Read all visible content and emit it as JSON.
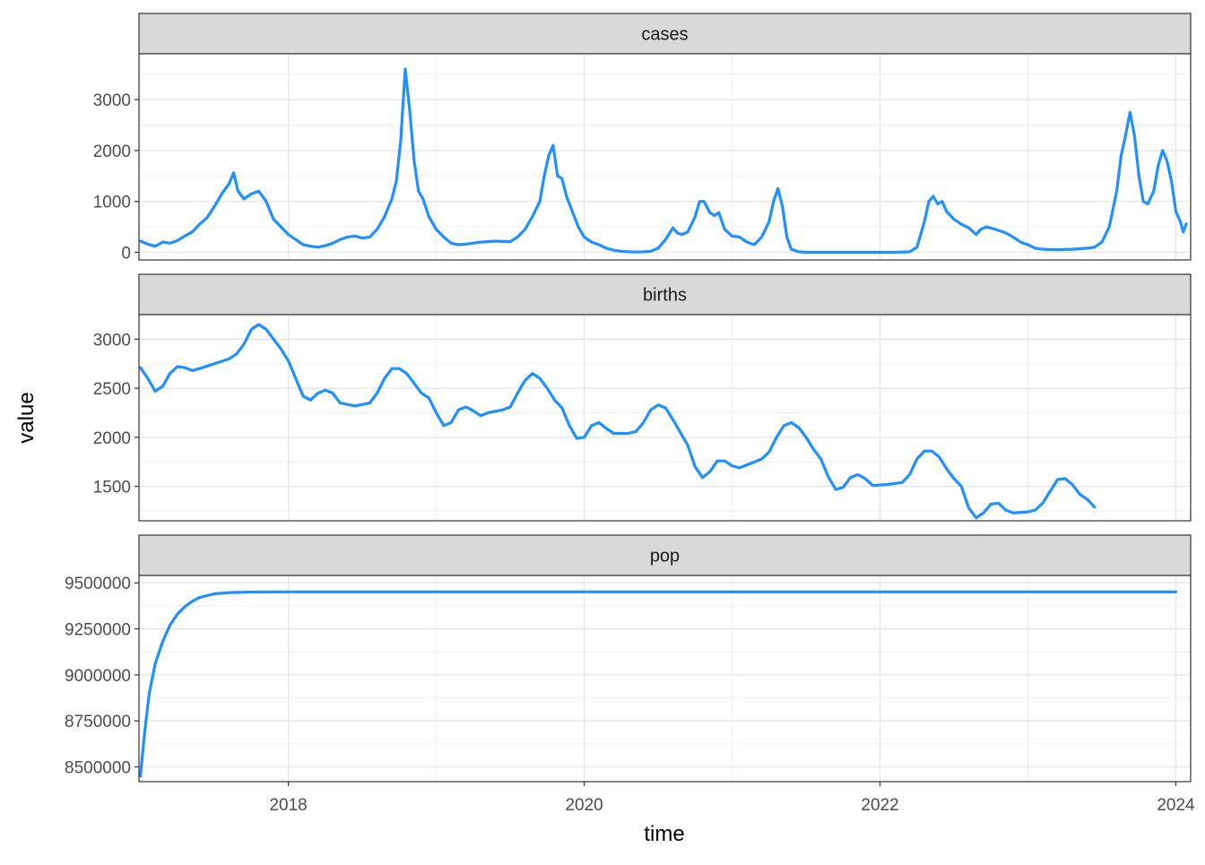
{
  "chart_data": {
    "type": "line",
    "layout": "facet_wrap",
    "xlabel": "time",
    "ylabel": "value",
    "x_ticks": [
      2018,
      2020,
      2022,
      2024
    ],
    "xlim": [
      2016.99,
      2024.1
    ],
    "grid": true,
    "line_color": "#1E90FF",
    "panels": [
      {
        "name": "cases",
        "ylim": [
          -150,
          3900
        ],
        "y_ticks": [
          0,
          1000,
          2000,
          3000
        ],
        "points": [
          [
            2017.0,
            220
          ],
          [
            2017.05,
            160
          ],
          [
            2017.1,
            120
          ],
          [
            2017.15,
            200
          ],
          [
            2017.2,
            180
          ],
          [
            2017.25,
            230
          ],
          [
            2017.3,
            320
          ],
          [
            2017.35,
            400
          ],
          [
            2017.4,
            550
          ],
          [
            2017.45,
            680
          ],
          [
            2017.5,
            900
          ],
          [
            2017.55,
            1150
          ],
          [
            2017.6,
            1350
          ],
          [
            2017.63,
            1560
          ],
          [
            2017.66,
            1200
          ],
          [
            2017.7,
            1050
          ],
          [
            2017.75,
            1150
          ],
          [
            2017.8,
            1200
          ],
          [
            2017.85,
            1000
          ],
          [
            2017.9,
            650
          ],
          [
            2017.95,
            500
          ],
          [
            2018.0,
            350
          ],
          [
            2018.05,
            250
          ],
          [
            2018.1,
            150
          ],
          [
            2018.15,
            120
          ],
          [
            2018.2,
            100
          ],
          [
            2018.25,
            130
          ],
          [
            2018.3,
            180
          ],
          [
            2018.35,
            250
          ],
          [
            2018.4,
            300
          ],
          [
            2018.45,
            320
          ],
          [
            2018.5,
            280
          ],
          [
            2018.55,
            300
          ],
          [
            2018.6,
            450
          ],
          [
            2018.65,
            700
          ],
          [
            2018.7,
            1050
          ],
          [
            2018.73,
            1400
          ],
          [
            2018.76,
            2200
          ],
          [
            2018.79,
            3600
          ],
          [
            2018.82,
            2800
          ],
          [
            2018.85,
            1800
          ],
          [
            2018.88,
            1200
          ],
          [
            2018.91,
            1050
          ],
          [
            2018.95,
            700
          ],
          [
            2019.0,
            450
          ],
          [
            2019.05,
            300
          ],
          [
            2019.1,
            180
          ],
          [
            2019.15,
            150
          ],
          [
            2019.2,
            160
          ],
          [
            2019.3,
            200
          ],
          [
            2019.4,
            220
          ],
          [
            2019.5,
            210
          ],
          [
            2019.55,
            300
          ],
          [
            2019.6,
            450
          ],
          [
            2019.65,
            700
          ],
          [
            2019.7,
            1000
          ],
          [
            2019.73,
            1500
          ],
          [
            2019.76,
            1900
          ],
          [
            2019.79,
            2100
          ],
          [
            2019.82,
            1500
          ],
          [
            2019.85,
            1450
          ],
          [
            2019.88,
            1100
          ],
          [
            2019.92,
            800
          ],
          [
            2019.96,
            500
          ],
          [
            2020.0,
            300
          ],
          [
            2020.05,
            200
          ],
          [
            2020.1,
            150
          ],
          [
            2020.15,
            80
          ],
          [
            2020.2,
            40
          ],
          [
            2020.25,
            20
          ],
          [
            2020.3,
            10
          ],
          [
            2020.35,
            5
          ],
          [
            2020.4,
            10
          ],
          [
            2020.45,
            20
          ],
          [
            2020.5,
            80
          ],
          [
            2020.55,
            250
          ],
          [
            2020.6,
            480
          ],
          [
            2020.63,
            380
          ],
          [
            2020.66,
            350
          ],
          [
            2020.7,
            400
          ],
          [
            2020.75,
            700
          ],
          [
            2020.78,
            1000
          ],
          [
            2020.81,
            1000
          ],
          [
            2020.85,
            780
          ],
          [
            2020.88,
            720
          ],
          [
            2020.91,
            780
          ],
          [
            2020.95,
            450
          ],
          [
            2021.0,
            320
          ],
          [
            2021.05,
            300
          ],
          [
            2021.1,
            200
          ],
          [
            2021.15,
            150
          ],
          [
            2021.2,
            300
          ],
          [
            2021.25,
            600
          ],
          [
            2021.28,
            1000
          ],
          [
            2021.31,
            1250
          ],
          [
            2021.34,
            900
          ],
          [
            2021.37,
            300
          ],
          [
            2021.4,
            60
          ],
          [
            2021.45,
            10
          ],
          [
            2021.5,
            0
          ],
          [
            2022.0,
            0
          ],
          [
            2022.1,
            0
          ],
          [
            2022.2,
            10
          ],
          [
            2022.25,
            100
          ],
          [
            2022.3,
            600
          ],
          [
            2022.33,
            1000
          ],
          [
            2022.36,
            1100
          ],
          [
            2022.39,
            950
          ],
          [
            2022.42,
            1000
          ],
          [
            2022.45,
            800
          ],
          [
            2022.5,
            650
          ],
          [
            2022.55,
            550
          ],
          [
            2022.6,
            480
          ],
          [
            2022.65,
            350
          ],
          [
            2022.68,
            450
          ],
          [
            2022.72,
            500
          ],
          [
            2022.78,
            450
          ],
          [
            2022.85,
            380
          ],
          [
            2022.9,
            300
          ],
          [
            2022.95,
            200
          ],
          [
            2023.0,
            150
          ],
          [
            2023.05,
            80
          ],
          [
            2023.1,
            60
          ],
          [
            2023.2,
            50
          ],
          [
            2023.3,
            60
          ],
          [
            2023.4,
            80
          ],
          [
            2023.45,
            100
          ],
          [
            2023.5,
            200
          ],
          [
            2023.55,
            500
          ],
          [
            2023.6,
            1200
          ],
          [
            2023.63,
            1900
          ],
          [
            2023.66,
            2300
          ],
          [
            2023.69,
            2750
          ],
          [
            2023.72,
            2300
          ],
          [
            2023.75,
            1500
          ],
          [
            2023.78,
            1000
          ],
          [
            2023.81,
            950
          ],
          [
            2023.85,
            1200
          ],
          [
            2023.88,
            1700
          ],
          [
            2023.91,
            2000
          ],
          [
            2023.94,
            1800
          ],
          [
            2023.97,
            1400
          ],
          [
            2024.0,
            800
          ],
          [
            2024.03,
            600
          ],
          [
            2024.05,
            400
          ],
          [
            2024.07,
            560
          ]
        ]
      },
      {
        "name": "births",
        "ylim": [
          1150,
          3250
        ],
        "y_ticks": [
          1500,
          2000,
          2500,
          3000
        ],
        "points": [
          [
            2017.0,
            2710
          ],
          [
            2017.05,
            2600
          ],
          [
            2017.1,
            2470
          ],
          [
            2017.15,
            2520
          ],
          [
            2017.2,
            2650
          ],
          [
            2017.25,
            2720
          ],
          [
            2017.3,
            2710
          ],
          [
            2017.35,
            2680
          ],
          [
            2017.4,
            2700
          ],
          [
            2017.5,
            2750
          ],
          [
            2017.6,
            2800
          ],
          [
            2017.65,
            2850
          ],
          [
            2017.7,
            2950
          ],
          [
            2017.75,
            3100
          ],
          [
            2017.8,
            3150
          ],
          [
            2017.85,
            3100
          ],
          [
            2017.9,
            3000
          ],
          [
            2017.95,
            2900
          ],
          [
            2018.0,
            2780
          ],
          [
            2018.05,
            2600
          ],
          [
            2018.1,
            2420
          ],
          [
            2018.15,
            2380
          ],
          [
            2018.2,
            2450
          ],
          [
            2018.25,
            2480
          ],
          [
            2018.3,
            2450
          ],
          [
            2018.35,
            2350
          ],
          [
            2018.45,
            2320
          ],
          [
            2018.55,
            2350
          ],
          [
            2018.6,
            2450
          ],
          [
            2018.65,
            2600
          ],
          [
            2018.7,
            2700
          ],
          [
            2018.75,
            2700
          ],
          [
            2018.8,
            2650
          ],
          [
            2018.85,
            2550
          ],
          [
            2018.9,
            2450
          ],
          [
            2018.95,
            2400
          ],
          [
            2019.0,
            2250
          ],
          [
            2019.05,
            2120
          ],
          [
            2019.1,
            2150
          ],
          [
            2019.15,
            2280
          ],
          [
            2019.2,
            2310
          ],
          [
            2019.25,
            2270
          ],
          [
            2019.3,
            2220
          ],
          [
            2019.35,
            2250
          ],
          [
            2019.45,
            2280
          ],
          [
            2019.5,
            2310
          ],
          [
            2019.55,
            2450
          ],
          [
            2019.6,
            2580
          ],
          [
            2019.65,
            2650
          ],
          [
            2019.7,
            2600
          ],
          [
            2019.75,
            2500
          ],
          [
            2019.8,
            2380
          ],
          [
            2019.85,
            2300
          ],
          [
            2019.9,
            2120
          ],
          [
            2019.95,
            1990
          ],
          [
            2020.0,
            2000
          ],
          [
            2020.05,
            2120
          ],
          [
            2020.1,
            2150
          ],
          [
            2020.15,
            2090
          ],
          [
            2020.2,
            2040
          ],
          [
            2020.3,
            2040
          ],
          [
            2020.35,
            2060
          ],
          [
            2020.4,
            2150
          ],
          [
            2020.45,
            2280
          ],
          [
            2020.5,
            2330
          ],
          [
            2020.55,
            2300
          ],
          [
            2020.6,
            2180
          ],
          [
            2020.65,
            2050
          ],
          [
            2020.7,
            1920
          ],
          [
            2020.75,
            1700
          ],
          [
            2020.8,
            1590
          ],
          [
            2020.85,
            1650
          ],
          [
            2020.9,
            1760
          ],
          [
            2020.95,
            1760
          ],
          [
            2021.0,
            1710
          ],
          [
            2021.05,
            1690
          ],
          [
            2021.1,
            1720
          ],
          [
            2021.2,
            1780
          ],
          [
            2021.25,
            1850
          ],
          [
            2021.3,
            2000
          ],
          [
            2021.35,
            2120
          ],
          [
            2021.4,
            2150
          ],
          [
            2021.45,
            2100
          ],
          [
            2021.5,
            2000
          ],
          [
            2021.55,
            1880
          ],
          [
            2021.6,
            1780
          ],
          [
            2021.65,
            1600
          ],
          [
            2021.7,
            1470
          ],
          [
            2021.75,
            1490
          ],
          [
            2021.8,
            1590
          ],
          [
            2021.85,
            1620
          ],
          [
            2021.9,
            1580
          ],
          [
            2021.95,
            1510
          ],
          [
            2022.05,
            1520
          ],
          [
            2022.15,
            1540
          ],
          [
            2022.2,
            1620
          ],
          [
            2022.25,
            1780
          ],
          [
            2022.3,
            1860
          ],
          [
            2022.35,
            1860
          ],
          [
            2022.4,
            1800
          ],
          [
            2022.45,
            1680
          ],
          [
            2022.5,
            1580
          ],
          [
            2022.55,
            1500
          ],
          [
            2022.6,
            1280
          ],
          [
            2022.65,
            1180
          ],
          [
            2022.7,
            1230
          ],
          [
            2022.75,
            1320
          ],
          [
            2022.8,
            1330
          ],
          [
            2022.85,
            1260
          ],
          [
            2022.9,
            1230
          ],
          [
            2023.0,
            1240
          ],
          [
            2023.05,
            1260
          ],
          [
            2023.1,
            1330
          ],
          [
            2023.15,
            1450
          ],
          [
            2023.2,
            1570
          ],
          [
            2023.25,
            1580
          ],
          [
            2023.3,
            1520
          ],
          [
            2023.35,
            1420
          ],
          [
            2023.4,
            1370
          ],
          [
            2023.45,
            1290
          ]
        ]
      },
      {
        "name": "pop",
        "ylim": [
          8420000,
          9540000
        ],
        "y_ticks": [
          8500000,
          8750000,
          9000000,
          9250000,
          9500000
        ],
        "points": [
          [
            2017.0,
            8450000
          ],
          [
            2017.03,
            8700000
          ],
          [
            2017.06,
            8900000
          ],
          [
            2017.1,
            9060000
          ],
          [
            2017.15,
            9180000
          ],
          [
            2017.2,
            9270000
          ],
          [
            2017.25,
            9330000
          ],
          [
            2017.3,
            9370000
          ],
          [
            2017.35,
            9400000
          ],
          [
            2017.4,
            9420000
          ],
          [
            2017.5,
            9440000
          ],
          [
            2017.6,
            9447000
          ],
          [
            2017.75,
            9450000
          ],
          [
            2018.0,
            9451000
          ],
          [
            2020.0,
            9451000
          ],
          [
            2022.0,
            9451000
          ],
          [
            2024.0,
            9451000
          ]
        ]
      }
    ]
  }
}
